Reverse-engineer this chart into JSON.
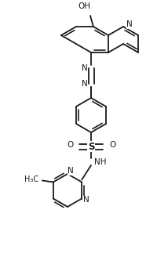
{
  "bg_color": "#ffffff",
  "line_color": "#1a1a1a",
  "line_width": 1.3,
  "figsize": [
    2.0,
    3.23
  ],
  "dpi": 100,
  "xlim": [
    0,
    200
  ],
  "ylim": [
    0,
    323
  ]
}
